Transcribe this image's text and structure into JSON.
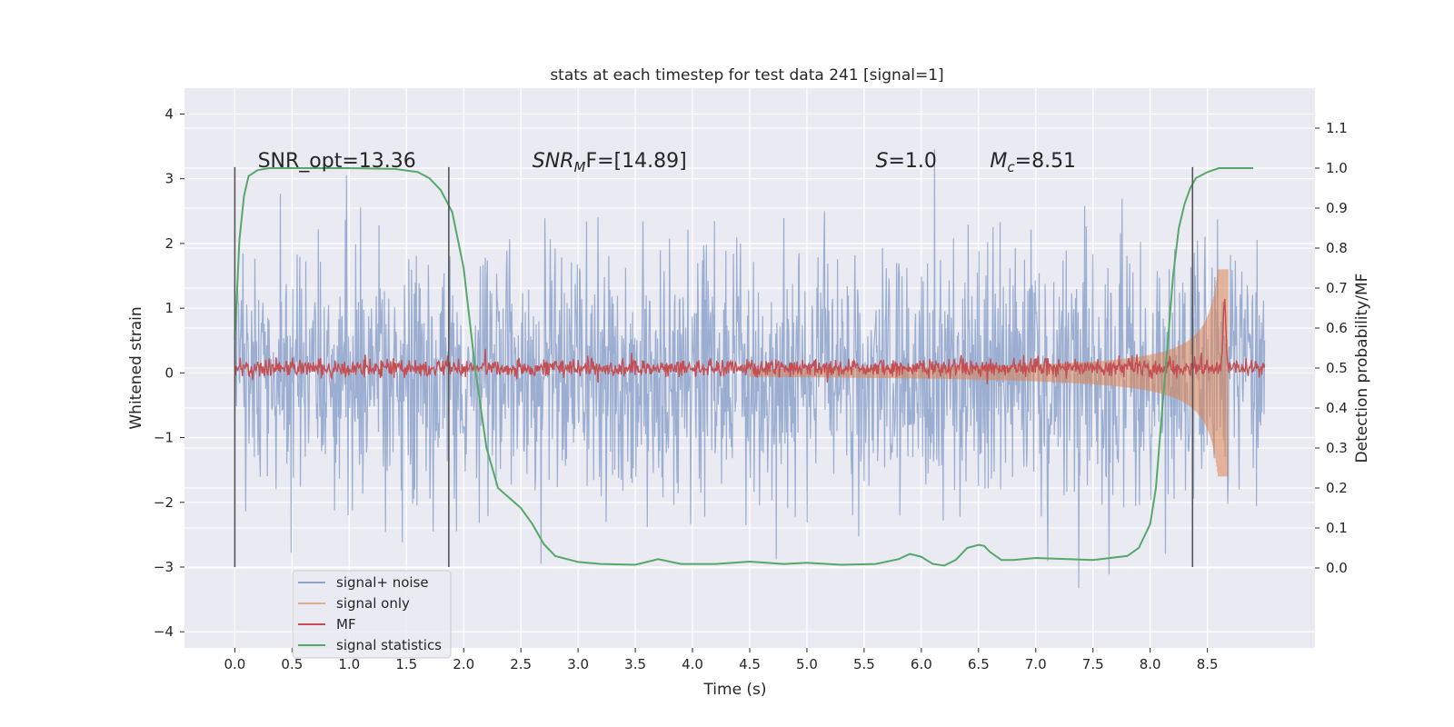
{
  "chart_data": {
    "type": "line",
    "title": "stats at each timestep for test data 241 [signal=1]",
    "xlabel": "Time (s)",
    "ylabel_left": "Whitened strain",
    "ylabel_right": "Detection probability/MF",
    "xlim": [
      -0.44,
      9.44
    ],
    "ylim_left": [
      -4.25,
      4.4
    ],
    "ylim_right": [
      -0.2,
      1.2
    ],
    "x_ticks": [
      0.0,
      0.5,
      1.0,
      1.5,
      2.0,
      2.5,
      3.0,
      3.5,
      4.0,
      4.5,
      5.0,
      5.5,
      6.0,
      6.5,
      7.0,
      7.5,
      8.0,
      8.5
    ],
    "x_tick_labels": [
      "0.0",
      "0.5",
      "1.0",
      "1.5",
      "2.0",
      "2.5",
      "3.0",
      "3.5",
      "4.0",
      "4.5",
      "5.0",
      "5.5",
      "6.0",
      "6.5",
      "7.0",
      "7.5",
      "8.0",
      "8.5"
    ],
    "y_left_ticks": [
      4,
      3,
      2,
      1,
      0,
      -1,
      -2,
      -3,
      -4
    ],
    "y_left_tick_labels": [
      "4",
      "3",
      "2",
      "1",
      "0",
      "−1",
      "−2",
      "−3",
      "−4"
    ],
    "y_right_ticks": [
      1.1,
      1.0,
      0.9,
      0.8,
      0.7,
      0.6,
      0.5,
      0.4,
      0.3,
      0.2,
      0.1,
      0.0
    ],
    "y_right_tick_labels": [
      "1.1",
      "1.0",
      "0.9",
      "0.8",
      "0.7",
      "0.6",
      "0.5",
      "0.4",
      "0.3",
      "0.2",
      "0.1",
      "0.0"
    ],
    "grid": true,
    "legend_position": "bottom-left",
    "series": [
      {
        "name": "signal+ noise",
        "color": "#4c72b0",
        "axis": "left",
        "kind": "noise",
        "x_range": [
          0.0,
          9.0
        ],
        "sigma": 0.95
      },
      {
        "name": "signal only",
        "color": "#dd8452",
        "axis": "left",
        "kind": "chirp",
        "x_range": [
          4.5,
          8.68
        ],
        "peak_amplitude": 1.6
      },
      {
        "name": "MF",
        "color": "#c44e52",
        "axis": "right",
        "kind": "mf",
        "x_range": [
          0.0,
          9.0
        ],
        "baseline": 0.5,
        "peak_x": 8.65,
        "peak_y": 0.68
      },
      {
        "name": "signal statistics",
        "color": "#55a868",
        "axis": "right",
        "kind": "line",
        "x": [
          0.0,
          0.04,
          0.08,
          0.12,
          0.2,
          0.3,
          0.5,
          1.0,
          1.4,
          1.6,
          1.7,
          1.8,
          1.9,
          2.0,
          2.1,
          2.2,
          2.3,
          2.4,
          2.5,
          2.6,
          2.7,
          2.8,
          3.0,
          3.2,
          3.5,
          3.7,
          3.9,
          4.2,
          4.5,
          4.8,
          5.0,
          5.3,
          5.6,
          5.8,
          5.9,
          6.0,
          6.1,
          6.2,
          6.3,
          6.4,
          6.5,
          6.55,
          6.6,
          6.7,
          6.8,
          7.0,
          7.5,
          7.8,
          7.9,
          8.0,
          8.05,
          8.1,
          8.15,
          8.2,
          8.25,
          8.3,
          8.35,
          8.4,
          8.5,
          8.6,
          8.7,
          8.9
        ],
        "y": [
          0.57,
          0.82,
          0.93,
          0.98,
          0.995,
          1.0,
          1.0,
          1.0,
          0.998,
          0.99,
          0.975,
          0.945,
          0.89,
          0.75,
          0.5,
          0.3,
          0.2,
          0.175,
          0.15,
          0.11,
          0.06,
          0.03,
          0.015,
          0.01,
          0.008,
          0.022,
          0.01,
          0.01,
          0.016,
          0.01,
          0.013,
          0.008,
          0.01,
          0.022,
          0.035,
          0.028,
          0.01,
          0.006,
          0.02,
          0.05,
          0.058,
          0.055,
          0.04,
          0.02,
          0.02,
          0.025,
          0.02,
          0.03,
          0.05,
          0.11,
          0.2,
          0.38,
          0.55,
          0.73,
          0.85,
          0.91,
          0.95,
          0.975,
          0.99,
          1.0,
          1.0,
          1.0
        ]
      }
    ],
    "vlines": [
      0.0,
      1.87,
      8.37
    ],
    "annotations": [
      {
        "id": "snr-opt",
        "x": 0.2,
        "base": "SNR_opt=13.36",
        "sub": "",
        "tail": ""
      },
      {
        "id": "snr-mf",
        "x": 2.6,
        "base": "SNR",
        "sub": "M",
        "tail": "F=[14.89]"
      },
      {
        "id": "s-value",
        "x": 5.6,
        "base": "S",
        "sub": "",
        "tail": "=1.0"
      },
      {
        "id": "chirp-mass",
        "x": 6.6,
        "base": "M",
        "sub": "c",
        "tail": "=8.51"
      }
    ]
  }
}
